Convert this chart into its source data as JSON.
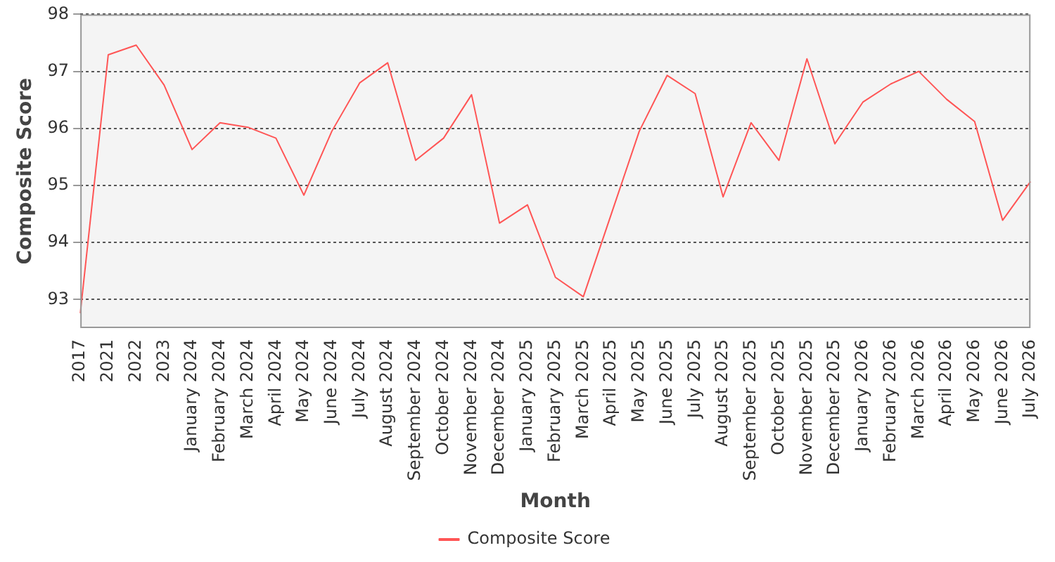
{
  "chart_data": {
    "type": "line",
    "xlabel": "Month",
    "ylabel": "Composite Score",
    "categories": [
      "2017",
      "2021",
      "2022",
      "2023",
      "January 2024",
      "February 2024",
      "March 2024",
      "April 2024",
      "May 2024",
      "June 2024",
      "July 2024",
      "August 2024",
      "September 2024",
      "October 2024",
      "November 2024",
      "December 2024",
      "January 2025",
      "February 2025",
      "March 2025",
      "April 2025",
      "May 2025",
      "June 2025",
      "July 2025",
      "August 2025",
      "September 2025",
      "October 2025",
      "November 2025",
      "December 2025",
      "January 2026",
      "February 2026",
      "March 2026",
      "April 2026",
      "May 2026",
      "June 2026",
      "July 2026"
    ],
    "series": [
      {
        "name": "Composite Score",
        "color": "#ff5555",
        "values": [
          92.76,
          97.29,
          97.46,
          96.76,
          95.63,
          96.1,
          96.02,
          95.83,
          94.83,
          95.95,
          96.8,
          97.15,
          95.44,
          95.83,
          96.59,
          94.34,
          94.66,
          93.39,
          93.05,
          94.5,
          95.95,
          96.93,
          96.61,
          94.8,
          96.1,
          95.44,
          97.22,
          95.73,
          96.46,
          96.78,
          97.0,
          96.51,
          96.12,
          94.39,
          95.07
        ]
      }
    ],
    "ylim": [
      92.5,
      98
    ],
    "yticks": [
      93,
      94,
      95,
      96,
      97,
      98
    ],
    "grid": "y",
    "legend": "bottom",
    "marker": "none",
    "line_style": "solid"
  }
}
